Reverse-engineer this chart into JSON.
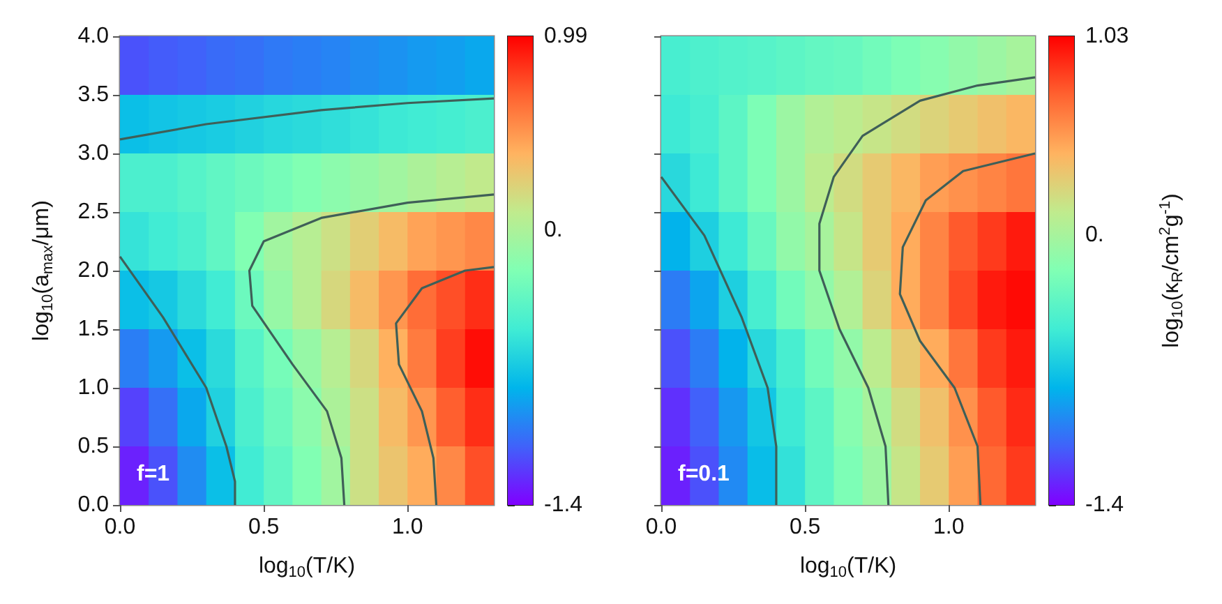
{
  "chart_data": [
    {
      "type": "heatmap",
      "xlabel": "log$_{10}$(T/K)",
      "ylabel": "log$_{10}$(a$_{max}$/μm)",
      "annotations": [
        "f=1"
      ],
      "xlim": [
        0,
        1.3
      ],
      "xticks": [
        {
          "value": 0,
          "label": "0.0"
        },
        {
          "value": 0.5,
          "label": "0.5"
        },
        {
          "value": 1,
          "label": "1.0"
        }
      ],
      "ylim": [
        0,
        4
      ],
      "yticks": [
        {
          "value": 0,
          "label": "0.0"
        },
        {
          "value": 0.5,
          "label": "0.5"
        },
        {
          "value": 1,
          "label": "1.0"
        },
        {
          "value": 1.5,
          "label": "1.5"
        },
        {
          "value": 2,
          "label": "2.0"
        },
        {
          "value": 2.5,
          "label": "2.5"
        },
        {
          "value": 3,
          "label": "3.0"
        },
        {
          "value": 3.5,
          "label": "3.5"
        },
        {
          "value": 4,
          "label": "4.0"
        }
      ],
      "clim": [
        -1.4,
        0.99
      ],
      "cticks": [
        -1.4,
        {
          "value": 0,
          "label": "0."
        },
        0.99
      ],
      "cells": [
        [
          -1.15,
          -1.12,
          -1.1,
          -1.07,
          -1.05,
          -1.02,
          -1.0,
          -0.98,
          -0.95,
          -0.93,
          -0.9,
          -0.88,
          -0.85
        ],
        [
          -0.75,
          -0.72,
          -0.7,
          -0.68,
          -0.65,
          -0.62,
          -0.6,
          -0.58,
          -0.55,
          -0.52,
          -0.5,
          -0.48,
          -0.45
        ],
        [
          -0.45,
          -0.45,
          -0.4,
          -0.35,
          -0.3,
          -0.25,
          -0.2,
          -0.15,
          -0.1,
          -0.05,
          0,
          0.05,
          0.1
        ],
        [
          -0.55,
          -0.5,
          -0.45,
          -0.35,
          -0.2,
          -0.05,
          0.05,
          0.15,
          0.25,
          0.35,
          0.45,
          0.5,
          0.55
        ],
        [
          -0.75,
          -0.7,
          -0.6,
          -0.5,
          -0.3,
          -0.1,
          0.05,
          0.2,
          0.35,
          0.5,
          0.65,
          0.75,
          0.85
        ],
        [
          -1.0,
          -0.9,
          -0.75,
          -0.6,
          -0.4,
          -0.25,
          -0.1,
          0.05,
          0.2,
          0.4,
          0.6,
          0.8,
          0.95
        ],
        [
          -1.2,
          -1.05,
          -0.85,
          -0.65,
          -0.45,
          -0.3,
          -0.15,
          0,
          0.15,
          0.35,
          0.5,
          0.7,
          0.85
        ],
        [
          -1.3,
          -1.15,
          -0.95,
          -0.75,
          -0.5,
          -0.35,
          -0.2,
          -0.05,
          0.15,
          0.3,
          0.42,
          0.55,
          0.75
        ]
      ],
      "series": [
        {
          "type": "line",
          "color": "#3f5f58",
          "x": [
            0,
            0.15,
            0.3,
            0.37,
            0.4,
            0.4
          ],
          "values": [
            2.12,
            1.6,
            1.0,
            0.5,
            0.2,
            0
          ]
        },
        {
          "type": "line",
          "color": "#3f5f58",
          "x": [
            0.78,
            0.77,
            0.72,
            0.6,
            0.46,
            0.45,
            0.5,
            0.7,
            1.0,
            1.3
          ],
          "values": [
            0,
            0.4,
            0.8,
            1.2,
            1.7,
            2.0,
            2.25,
            2.45,
            2.58,
            2.65
          ]
        },
        {
          "type": "line",
          "color": "#3f5f58",
          "x": [
            1.1,
            1.09,
            1.05,
            0.97,
            0.96,
            1.05,
            1.2,
            1.3
          ],
          "values": [
            0,
            0.4,
            0.8,
            1.2,
            1.55,
            1.85,
            2.0,
            2.03
          ]
        },
        {
          "type": "line",
          "color": "#3f5f58",
          "x": [
            0,
            0.3,
            0.7,
            1.0,
            1.3
          ],
          "values": [
            3.12,
            3.25,
            3.37,
            3.43,
            3.47
          ]
        }
      ]
    },
    {
      "type": "heatmap",
      "xlabel": "log$_{10}$(T/K)",
      "clabel": "log$_{10}$(κ$_{R}$/cm$^{2}$g$^{-1}$)",
      "annotations": [
        "f=0.1"
      ],
      "tick_labels": "x",
      "xlim": [
        0,
        1.3
      ],
      "xticks": [
        {
          "value": 0,
          "label": "0.0"
        },
        {
          "value": 0.5,
          "label": "0.5"
        },
        {
          "value": 1,
          "label": "1.0"
        }
      ],
      "ylim": [
        0,
        4
      ],
      "yticks": [
        {
          "value": 0,
          "label": null
        },
        {
          "value": 0.5,
          "label": null
        },
        {
          "value": 1,
          "label": null
        },
        {
          "value": 1.5,
          "label": null
        },
        {
          "value": 2,
          "label": null
        },
        {
          "value": 2.5,
          "label": null
        },
        {
          "value": 3,
          "label": null
        },
        {
          "value": 3.5,
          "label": null
        },
        {
          "value": 4,
          "label": null
        }
      ],
      "clim": [
        -1.4,
        1.03
      ],
      "cticks": [
        -1.4,
        {
          "value": 0,
          "label": "0."
        },
        1.03
      ],
      "cells": [
        [
          -0.45,
          -0.42,
          -0.4,
          -0.38,
          -0.35,
          -0.32,
          -0.3,
          -0.25,
          -0.2,
          -0.15,
          -0.1,
          -0.05,
          0
        ],
        [
          -0.5,
          -0.45,
          -0.35,
          -0.2,
          -0.05,
          0.05,
          0.1,
          0.15,
          0.2,
          0.25,
          0.3,
          0.35,
          0.4
        ],
        [
          -0.6,
          -0.5,
          -0.35,
          -0.2,
          -0.05,
          0.1,
          0.2,
          0.3,
          0.4,
          0.5,
          0.55,
          0.6,
          0.65
        ],
        [
          -0.8,
          -0.65,
          -0.5,
          -0.3,
          -0.1,
          0.0,
          0.15,
          0.3,
          0.45,
          0.6,
          0.75,
          0.85,
          0.95
        ],
        [
          -1.0,
          -0.85,
          -0.65,
          -0.45,
          -0.25,
          -0.1,
          0.05,
          0.25,
          0.45,
          0.6,
          0.8,
          0.95,
          1.0
        ],
        [
          -1.15,
          -1.0,
          -0.8,
          -0.6,
          -0.45,
          -0.25,
          -0.1,
          0.1,
          0.3,
          0.45,
          0.65,
          0.85,
          0.95
        ],
        [
          -1.25,
          -1.1,
          -0.9,
          -0.7,
          -0.5,
          -0.35,
          -0.15,
          0,
          0.2,
          0.35,
          0.55,
          0.75,
          0.9
        ],
        [
          -1.3,
          -1.15,
          -0.95,
          -0.75,
          -0.55,
          -0.35,
          -0.2,
          -0.05,
          0.15,
          0.3,
          0.5,
          0.7,
          0.85
        ]
      ],
      "series": [
        {
          "type": "line",
          "color": "#3f5f58",
          "x": [
            0,
            0.15,
            0.28,
            0.37,
            0.4,
            0.4
          ],
          "values": [
            2.8,
            2.3,
            1.6,
            1.0,
            0.5,
            0
          ]
        },
        {
          "type": "line",
          "color": "#3f5f58",
          "x": [
            0.79,
            0.78,
            0.72,
            0.62,
            0.55,
            0.55,
            0.6,
            0.7,
            0.9,
            1.1,
            1.3
          ],
          "values": [
            0,
            0.5,
            1.0,
            1.5,
            2.0,
            2.4,
            2.8,
            3.15,
            3.45,
            3.58,
            3.65
          ]
        },
        {
          "type": "line",
          "color": "#3f5f58",
          "x": [
            1.11,
            1.1,
            1.02,
            0.9,
            0.83,
            0.84,
            0.92,
            1.05,
            1.3
          ],
          "values": [
            0,
            0.5,
            1.0,
            1.4,
            1.8,
            2.2,
            2.6,
            2.85,
            3.0
          ]
        }
      ]
    }
  ]
}
